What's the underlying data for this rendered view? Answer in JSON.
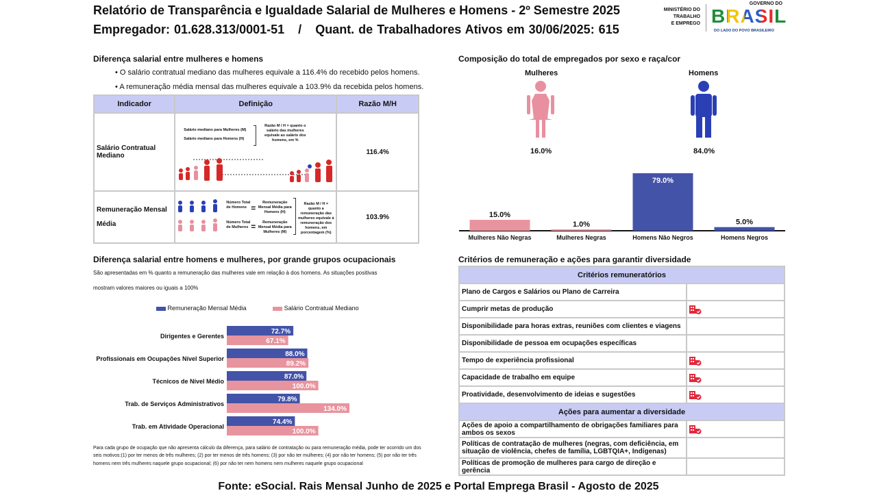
{
  "header": {
    "title": "Relatório de Transparência e Igualdade Salarial de Mulheres e Homens - 2º Semestre 2025",
    "employer_label": "Empregador: 01.628.313/0001-51",
    "separator": "/",
    "workers_label": "Quant. de Trabalhadores Ativos em 30/06/2025: 615",
    "logo_ministry": [
      "MINISTÉRIO DO",
      "TRABALHO",
      "E EMPREGO"
    ],
    "logo_gov_top": "GOVERNO DO",
    "logo_brasil": "BRASIL",
    "logo_tagline": "DO LADO DO POVO BRASILEIRO"
  },
  "salary_gap": {
    "title": "Diferença salarial entre mulheres e homens",
    "bullets": [
      "O salário contratual mediano das mulheres equivale a 116.4% do recebido pelos homens.",
      "A remuneração média mensal das mulheres equivale a 103.9% da recebida pelos homens."
    ],
    "table": {
      "headers": [
        "Indicador",
        "Definição",
        "Razão M/H"
      ],
      "rows": [
        {
          "indicator": "Salário Contratual Mediano",
          "ratio": "116.4%"
        },
        {
          "indicator_line1": "Remuneração Mensal",
          "indicator_line2": "Média",
          "ratio": "103.9%"
        }
      ],
      "def1": {
        "line1": "Salário mediano para Mulheres (M)",
        "line2": "Salário mediano para Homens (H)",
        "note": "Razão M / H = quanto o salário das mulheres equivale ao salário dos homens, em %"
      },
      "def2": {
        "num_h": "Número Total de Homens",
        "res_h": "Remuneração Mensal Média para Homens (H)",
        "num_m": "Número Total de Mulheres",
        "res_m": "Remuneração Mensal Média para Mulheres (M)",
        "note": "Razão M / H = quanto a remuneração das mulheres equivale à remuneração dos homens, em porcentagem (%)"
      }
    }
  },
  "composition": {
    "title": "Composição do total de empregados por sexo e raça/cor",
    "women_label": "Mulheres",
    "women_pct": "16.0%",
    "men_label": "Homens",
    "men_pct": "84.0%",
    "colors": {
      "women": "#e8909f",
      "men": "#2b3fb5"
    }
  },
  "chart_data": [
    {
      "type": "bar",
      "title": "Composição do total de empregados por sexo e raça/cor",
      "categories": [
        "Mulheres Não Negras",
        "Mulheres Negras",
        "Homens Não Negros",
        "Homens Negros"
      ],
      "values": [
        15.0,
        1.0,
        79.0,
        5.0
      ],
      "labels": [
        "15.0%",
        "1.0%",
        "79.0%",
        "5.0%"
      ],
      "colors": [
        "#e8949e",
        "#e8949e",
        "#4353a8",
        "#4353a8"
      ],
      "ylim": [
        0,
        79
      ]
    },
    {
      "type": "bar",
      "orientation": "horizontal",
      "title": "Diferença salarial entre homens e mulheres, por grande grupos ocupacionais",
      "categories": [
        "Dirigentes e Gerentes",
        "Profissionais em Ocupações Nível Superior",
        "Técnicos de Nível Médio",
        "Trab. de Serviços Administrativos",
        "Trab. em Atividade Operacional"
      ],
      "series": [
        {
          "name": "Remuneração Mensal Média",
          "values": [
            72.7,
            88.0,
            87.0,
            79.8,
            74.4
          ],
          "labels": [
            "72.7%",
            "88.0%",
            "87.0%",
            "79.8%",
            "74.4%"
          ],
          "color": "#4353a8"
        },
        {
          "name": "Salário Contratual Mediano",
          "values": [
            67.1,
            89.2,
            100.0,
            134.0,
            100.0
          ],
          "labels": [
            "67.1%",
            "89.2%",
            "100.0%",
            "134.0%",
            "100.0%"
          ],
          "color": "#e8949e"
        }
      ],
      "xlim": [
        0,
        134
      ]
    }
  ],
  "occupational": {
    "title": "Diferença salarial entre homens e mulheres, por grande grupos ocupacionais",
    "desc_line1": "São apresentadas em % quanto a remuneração das mulheres vale em relação à dos homens. As situações positivas",
    "desc_line2": "mostram valores maiores ou iguais a 100%",
    "footnote": "Para cada grupo de ocupação que não apresenta cálculo da diferença, para salário de contratação ou para remuneração média, pode ter ocorrido um dos seis motivos:(1) por ter menos de três mulheres; (2) por ter menos de três homens; (3) por não ter mulheres; (4) por não ter homens; (5) por não ter três homens nem três mulheres naquele grupo ocupacional; (6) por não ter nem homens nem mulheres naquele grupo ocupacional"
  },
  "criteria": {
    "title": "Critérios de remuneração e ações para garantir diversidade",
    "header1": "Critérios remuneratórios",
    "items1": [
      {
        "label": "Plano de Cargos e Salários ou Plano de Carreira",
        "checked": false
      },
      {
        "label": "Cumprir metas de produção",
        "checked": true
      },
      {
        "label": "Disponibilidade para horas extras, reuniões com clientes e viagens",
        "checked": false
      },
      {
        "label": "Disponibilidade de pessoa em ocupações específicas",
        "checked": false
      },
      {
        "label": "Tempo de experiência profissional",
        "checked": true
      },
      {
        "label": "Capacidade de trabalho em equipe",
        "checked": true
      },
      {
        "label": "Proatividade, desenvolvimento de ideias e sugestões",
        "checked": true
      }
    ],
    "header2": "Ações para aumentar a diversidade",
    "items2": [
      {
        "label": "Ações de apoio a compartilhamento de obrigações familiares para ambos os sexos",
        "checked": true
      },
      {
        "label": "Políticas de contratação de mulheres (negras, com deficiência, em situação de violência, chefes de família, LGBTQIA+, Indígenas)",
        "checked": false
      },
      {
        "label": "Políticas de promoção de mulheres para cargo de direção e gerência",
        "checked": false
      }
    ],
    "icon_color": "#e0283c"
  },
  "footer": "Fonte: eSocial. Rais Mensal Junho de 2025 e Portal Emprega Brasil - Agosto de 2025"
}
